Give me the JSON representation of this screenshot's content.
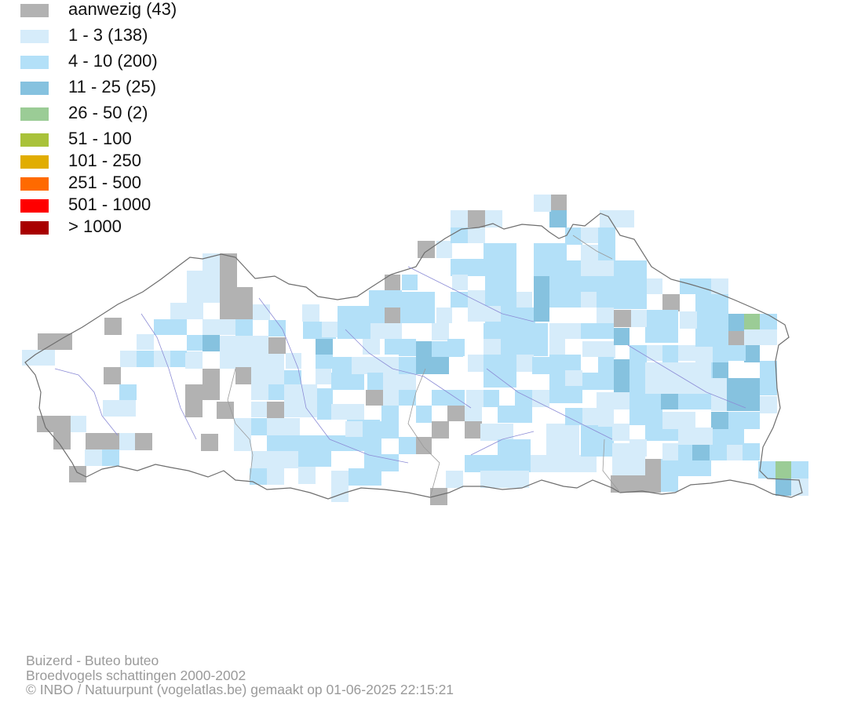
{
  "legend": {
    "items": [
      {
        "label": "aanwezig (43)",
        "color": "#b2b2b2"
      },
      {
        "label": "1 - 3 (138)",
        "color": "#d6ecfa"
      },
      {
        "label": "4 - 10 (200)",
        "color": "#b3e0f8"
      },
      {
        "label": "11 - 25 (25)",
        "color": "#86c2df"
      },
      {
        "label": "26 - 50 (2)",
        "color": "#9bcc96"
      },
      {
        "label": "51 - 100",
        "color": "#a9c23a"
      },
      {
        "label": "101 - 250",
        "color": "#e1ad01"
      },
      {
        "label": "251 - 500",
        "color": "#ff6a00"
      },
      {
        "label": "501 - 1000",
        "color": "#ff0000"
      },
      {
        "label": "> 1000",
        "color": "#a80000"
      }
    ]
  },
  "credits": {
    "species": "Buizerd - Buteo buteo",
    "dataset": "Broedvogels schattingen 2000-2002",
    "source": "© INBO / Natuurpunt (vogelatlas.be) gemaakt op 01-06-2025 22:15:21"
  }
}
